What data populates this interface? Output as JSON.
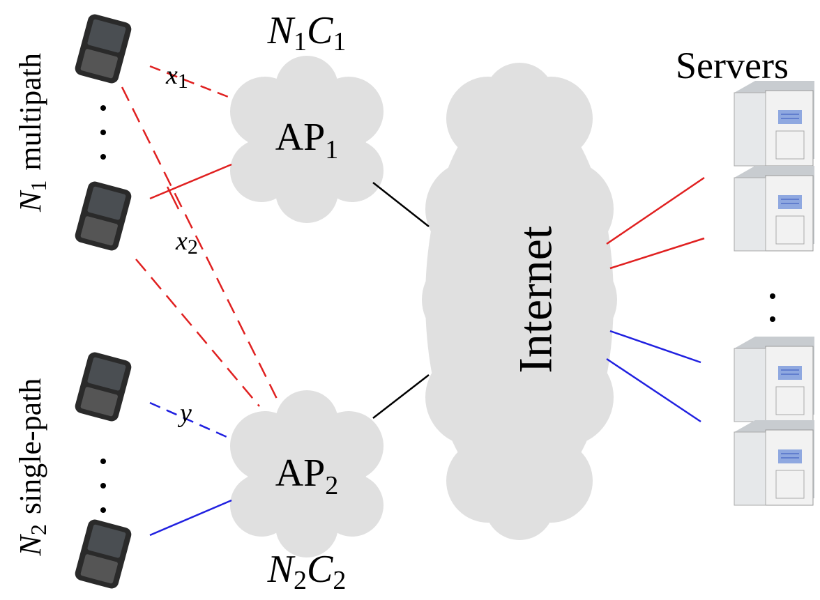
{
  "servers_label": "Servers",
  "internet_label": "Internet",
  "access_points": [
    {
      "name": {
        "base": "AP",
        "sub": "1"
      },
      "capacity": [
        {
          "base": "N",
          "sub": "1"
        },
        {
          "base": "C",
          "sub": "1"
        }
      ]
    },
    {
      "name": {
        "base": "AP",
        "sub": "2"
      },
      "capacity": [
        {
          "base": "N",
          "sub": "2"
        },
        {
          "base": "C",
          "sub": "2"
        }
      ]
    }
  ],
  "user_groups": [
    {
      "count": {
        "base": "N",
        "sub": "1"
      },
      "kind": "multipath"
    },
    {
      "count": {
        "base": "N",
        "sub": "2"
      },
      "kind": "single-path"
    }
  ],
  "flows": [
    {
      "base": "x",
      "sub": "1"
    },
    {
      "base": "x",
      "sub": "2"
    },
    {
      "base": "y"
    }
  ]
}
